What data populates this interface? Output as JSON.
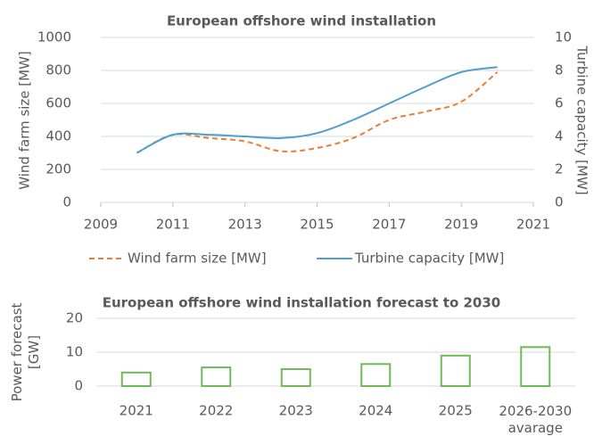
{
  "chart_data": [
    {
      "type": "line",
      "title": "European offshore wind installation",
      "ylabel": "Wind farm size [MW]",
      "y2label": "Turbine capacity [MW]",
      "x": [
        2010,
        2011,
        2012,
        2013,
        2014,
        2015,
        2016,
        2017,
        2018,
        2019,
        2020
      ],
      "xlim": [
        2009,
        2021
      ],
      "xticks": [
        2009,
        2011,
        2013,
        2015,
        2017,
        2019,
        2021
      ],
      "ylim": [
        0,
        1000
      ],
      "yticks": [
        0,
        200,
        400,
        600,
        800,
        1000
      ],
      "y2lim": [
        0,
        10
      ],
      "y2ticks": [
        0,
        2,
        4,
        6,
        8,
        10
      ],
      "series": [
        {
          "name": "Wind farm size [MW]",
          "color": "#ed7d31",
          "dashed": true,
          "values": [
            300,
            410,
            390,
            370,
            310,
            330,
            390,
            500,
            550,
            610,
            790
          ]
        },
        {
          "name": "Turbine capacity [MW]",
          "color": "#4f9fcb",
          "axis": "y2",
          "values": [
            3.0,
            4.1,
            4.1,
            4.0,
            3.9,
            4.2,
            5.0,
            6.0,
            7.0,
            7.9,
            8.2
          ]
        }
      ]
    },
    {
      "type": "bar",
      "title": "European offshore wind installation forecast to 2030",
      "ylabel": "Power forecast\n[GW]",
      "categories": [
        "2021",
        "2022",
        "2023",
        "2024",
        "2025",
        "2026-2030\navarage"
      ],
      "values": [
        4,
        5.5,
        5,
        6.5,
        9,
        11.5
      ],
      "color": "#70b85a",
      "ylim": [
        0,
        20
      ],
      "yticks": [
        0,
        10,
        20
      ],
      "grid": true
    }
  ]
}
